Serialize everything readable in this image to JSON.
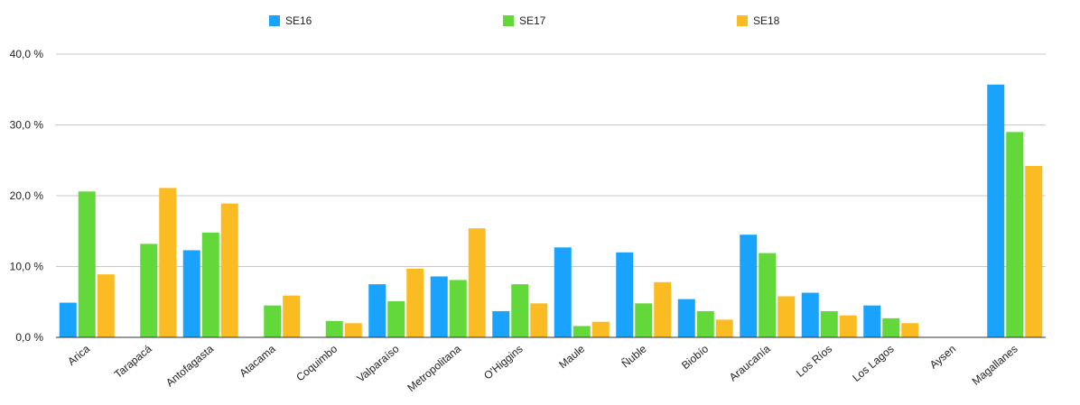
{
  "chart_data": {
    "type": "bar",
    "title": "",
    "xlabel": "",
    "ylabel": "",
    "ylim": [
      0,
      40
    ],
    "y_ticks": [
      "0,0 %",
      "10,0 %",
      "20,0 %",
      "30,0 %",
      "40,0 %"
    ],
    "y_tick_values": [
      0,
      10,
      20,
      30,
      40
    ],
    "grid": true,
    "legend_position": "top",
    "categories": [
      "Arica",
      "Tarapacá",
      "Antofagasta",
      "Atacama",
      "Coquimbo",
      "Valparaíso",
      "Metropolitana",
      "O'Higgins",
      "Maule",
      "Ñuble",
      "Biobío",
      "Araucanía",
      "Los Ríos",
      "Los Lagos",
      "Aysen",
      "Magallanes"
    ],
    "series": [
      {
        "name": "SE16",
        "color": "#1aa3fc",
        "values": [
          4.9,
          0,
          12.3,
          0,
          0,
          7.5,
          8.6,
          3.7,
          12.7,
          12.0,
          5.4,
          14.5,
          6.3,
          4.5,
          0,
          35.7
        ]
      },
      {
        "name": "SE17",
        "color": "#63d83a",
        "values": [
          20.6,
          13.2,
          14.8,
          4.5,
          2.3,
          5.1,
          8.1,
          7.5,
          1.6,
          4.8,
          3.7,
          11.9,
          3.7,
          2.7,
          0,
          29.0
        ]
      },
      {
        "name": "SE18",
        "color": "#fbbb22",
        "values": [
          8.9,
          21.1,
          18.9,
          5.9,
          2.0,
          9.7,
          15.4,
          4.8,
          2.2,
          7.8,
          2.5,
          5.8,
          3.1,
          2.0,
          0,
          24.2
        ]
      }
    ]
  }
}
